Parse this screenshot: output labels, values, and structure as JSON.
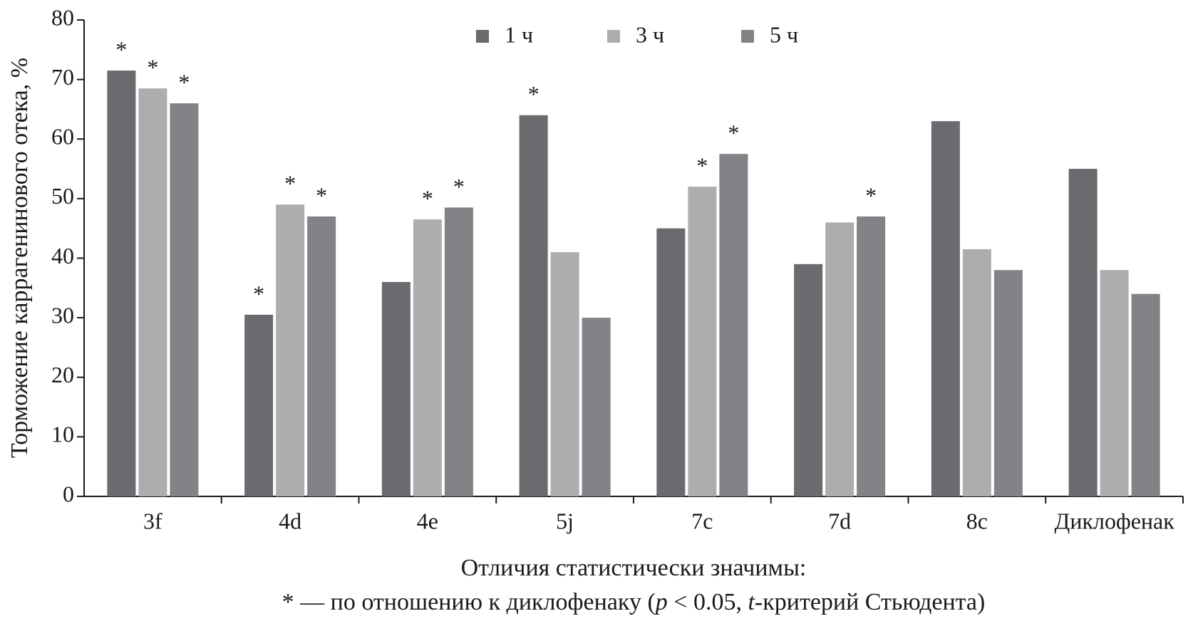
{
  "chart_data": {
    "type": "bar",
    "y_label": "Торможение каррагенинового отека, %",
    "categories": [
      "3f",
      "4d",
      "4e",
      "5j",
      "7c",
      "7d",
      "8c",
      "Диклофенак"
    ],
    "series": [
      {
        "name": "1 ч",
        "color": "#6a6a6f",
        "values": [
          71.5,
          30.5,
          36,
          64,
          45,
          39,
          63,
          55
        ],
        "significance": [
          "*",
          "*",
          null,
          "*",
          null,
          null,
          null,
          null
        ]
      },
      {
        "name": "3 ч",
        "color": "#adadb0",
        "values": [
          68.5,
          49,
          46.5,
          41,
          52,
          46,
          41.5,
          38
        ],
        "significance": [
          "*",
          "*",
          "*",
          null,
          "*",
          null,
          null,
          null
        ]
      },
      {
        "name": "5 ч",
        "color": "#838387",
        "values": [
          66,
          47,
          48.5,
          30,
          57.5,
          47,
          38,
          34
        ],
        "significance": [
          "*",
          "*",
          "*",
          null,
          "*",
          "*",
          null,
          null
        ]
      }
    ],
    "ylim": [
      0,
      80
    ],
    "yticks": [
      0,
      10,
      20,
      30,
      40,
      50,
      60,
      70,
      80
    ],
    "legend": "top",
    "note_title": "Отличия статистически значимы:",
    "note": [
      "* — по отношению к диклофенаку (",
      "p",
      " < 0.05, ",
      "t",
      "-критерий Стьюдента)"
    ]
  }
}
